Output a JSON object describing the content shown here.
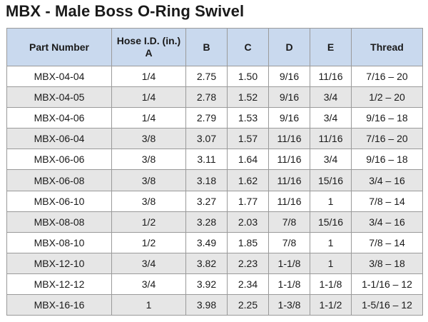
{
  "title": "MBX - Male Boss O-Ring Swivel",
  "table": {
    "headers": {
      "part_number": "Part Number",
      "hose_id_line1": "Hose I.D. (in.)",
      "hose_id_line2": "A",
      "b": "B",
      "c": "C",
      "d": "D",
      "e": "E",
      "thread": "Thread"
    },
    "rows": [
      [
        "MBX-04-04",
        "1/4",
        "2.75",
        "1.50",
        "9/16",
        "11/16",
        "7/16 – 20"
      ],
      [
        "MBX-04-05",
        "1/4",
        "2.78",
        "1.52",
        "9/16",
        "3/4",
        "1/2 – 20"
      ],
      [
        "MBX-04-06",
        "1/4",
        "2.79",
        "1.53",
        "9/16",
        "3/4",
        "9/16 – 18"
      ],
      [
        "MBX-06-04",
        "3/8",
        "3.07",
        "1.57",
        "11/16",
        "11/16",
        "7/16 – 20"
      ],
      [
        "MBX-06-06",
        "3/8",
        "3.11",
        "1.64",
        "11/16",
        "3/4",
        "9/16 – 18"
      ],
      [
        "MBX-06-08",
        "3/8",
        "3.18",
        "1.62",
        "11/16",
        "15/16",
        "3/4 – 16"
      ],
      [
        "MBX-06-10",
        "3/8",
        "3.27",
        "1.77",
        "11/16",
        "1",
        "7/8 – 14"
      ],
      [
        "MBX-08-08",
        "1/2",
        "3.28",
        "2.03",
        "7/8",
        "15/16",
        "3/4 – 16"
      ],
      [
        "MBX-08-10",
        "1/2",
        "3.49",
        "1.85",
        "7/8",
        "1",
        "7/8 – 14"
      ],
      [
        "MBX-12-10",
        "3/4",
        "3.82",
        "2.23",
        "1-1/8",
        "1",
        "3/8 – 18"
      ],
      [
        "MBX-12-12",
        "3/4",
        "3.92",
        "2.34",
        "1-1/8",
        "1-1/8",
        "1-1/16 – 12"
      ],
      [
        "MBX-16-16",
        "1",
        "3.98",
        "2.25",
        "1-3/8",
        "1-1/2",
        "1-5/16 – 12"
      ]
    ]
  },
  "colors": {
    "header_bg": "#c9d9ee",
    "stripe_bg": "#e6e6e6",
    "border": "#9a9a9a"
  }
}
